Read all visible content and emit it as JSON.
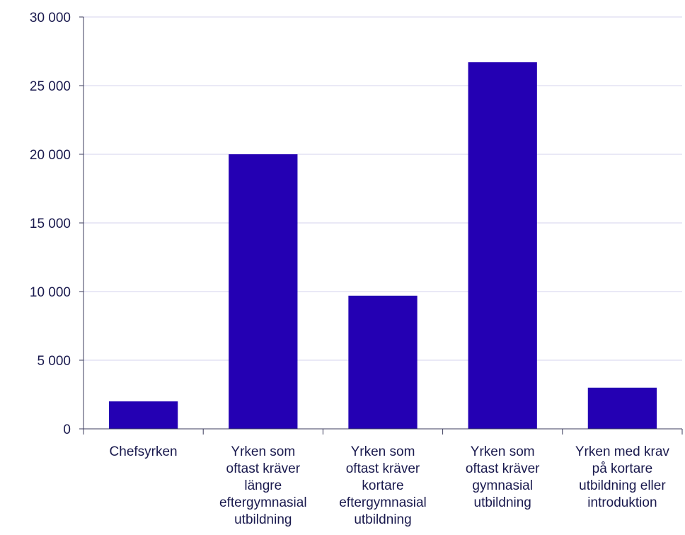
{
  "colors": {
    "bar": "#2400b3",
    "grid": "#d4d3ee",
    "axis": "#3b3b5c",
    "text": "#1a1a4e"
  },
  "chart_data": {
    "type": "bar",
    "title": "",
    "xlabel": "",
    "ylabel": "",
    "ylim": [
      0,
      30000
    ],
    "yticks": [
      0,
      5000,
      10000,
      15000,
      20000,
      25000,
      30000
    ],
    "ytick_labels": [
      "0",
      "5 000",
      "10 000",
      "15 000",
      "20 000",
      "25 000",
      "30 000"
    ],
    "grid": true,
    "categories": [
      [
        "Chefsyrken"
      ],
      [
        "Yrken som",
        "oftast kräver",
        "längre",
        "eftergymnasial",
        "utbildning"
      ],
      [
        "Yrken som",
        "oftast kräver",
        "kortare",
        "eftergymnasial",
        "utbildning"
      ],
      [
        "Yrken som",
        "oftast kräver",
        "gymnasial",
        "utbildning"
      ],
      [
        "Yrken med krav",
        "på kortare",
        "utbildning eller",
        "introduktion"
      ]
    ],
    "values": [
      2000,
      20000,
      9700,
      26700,
      3000
    ]
  }
}
